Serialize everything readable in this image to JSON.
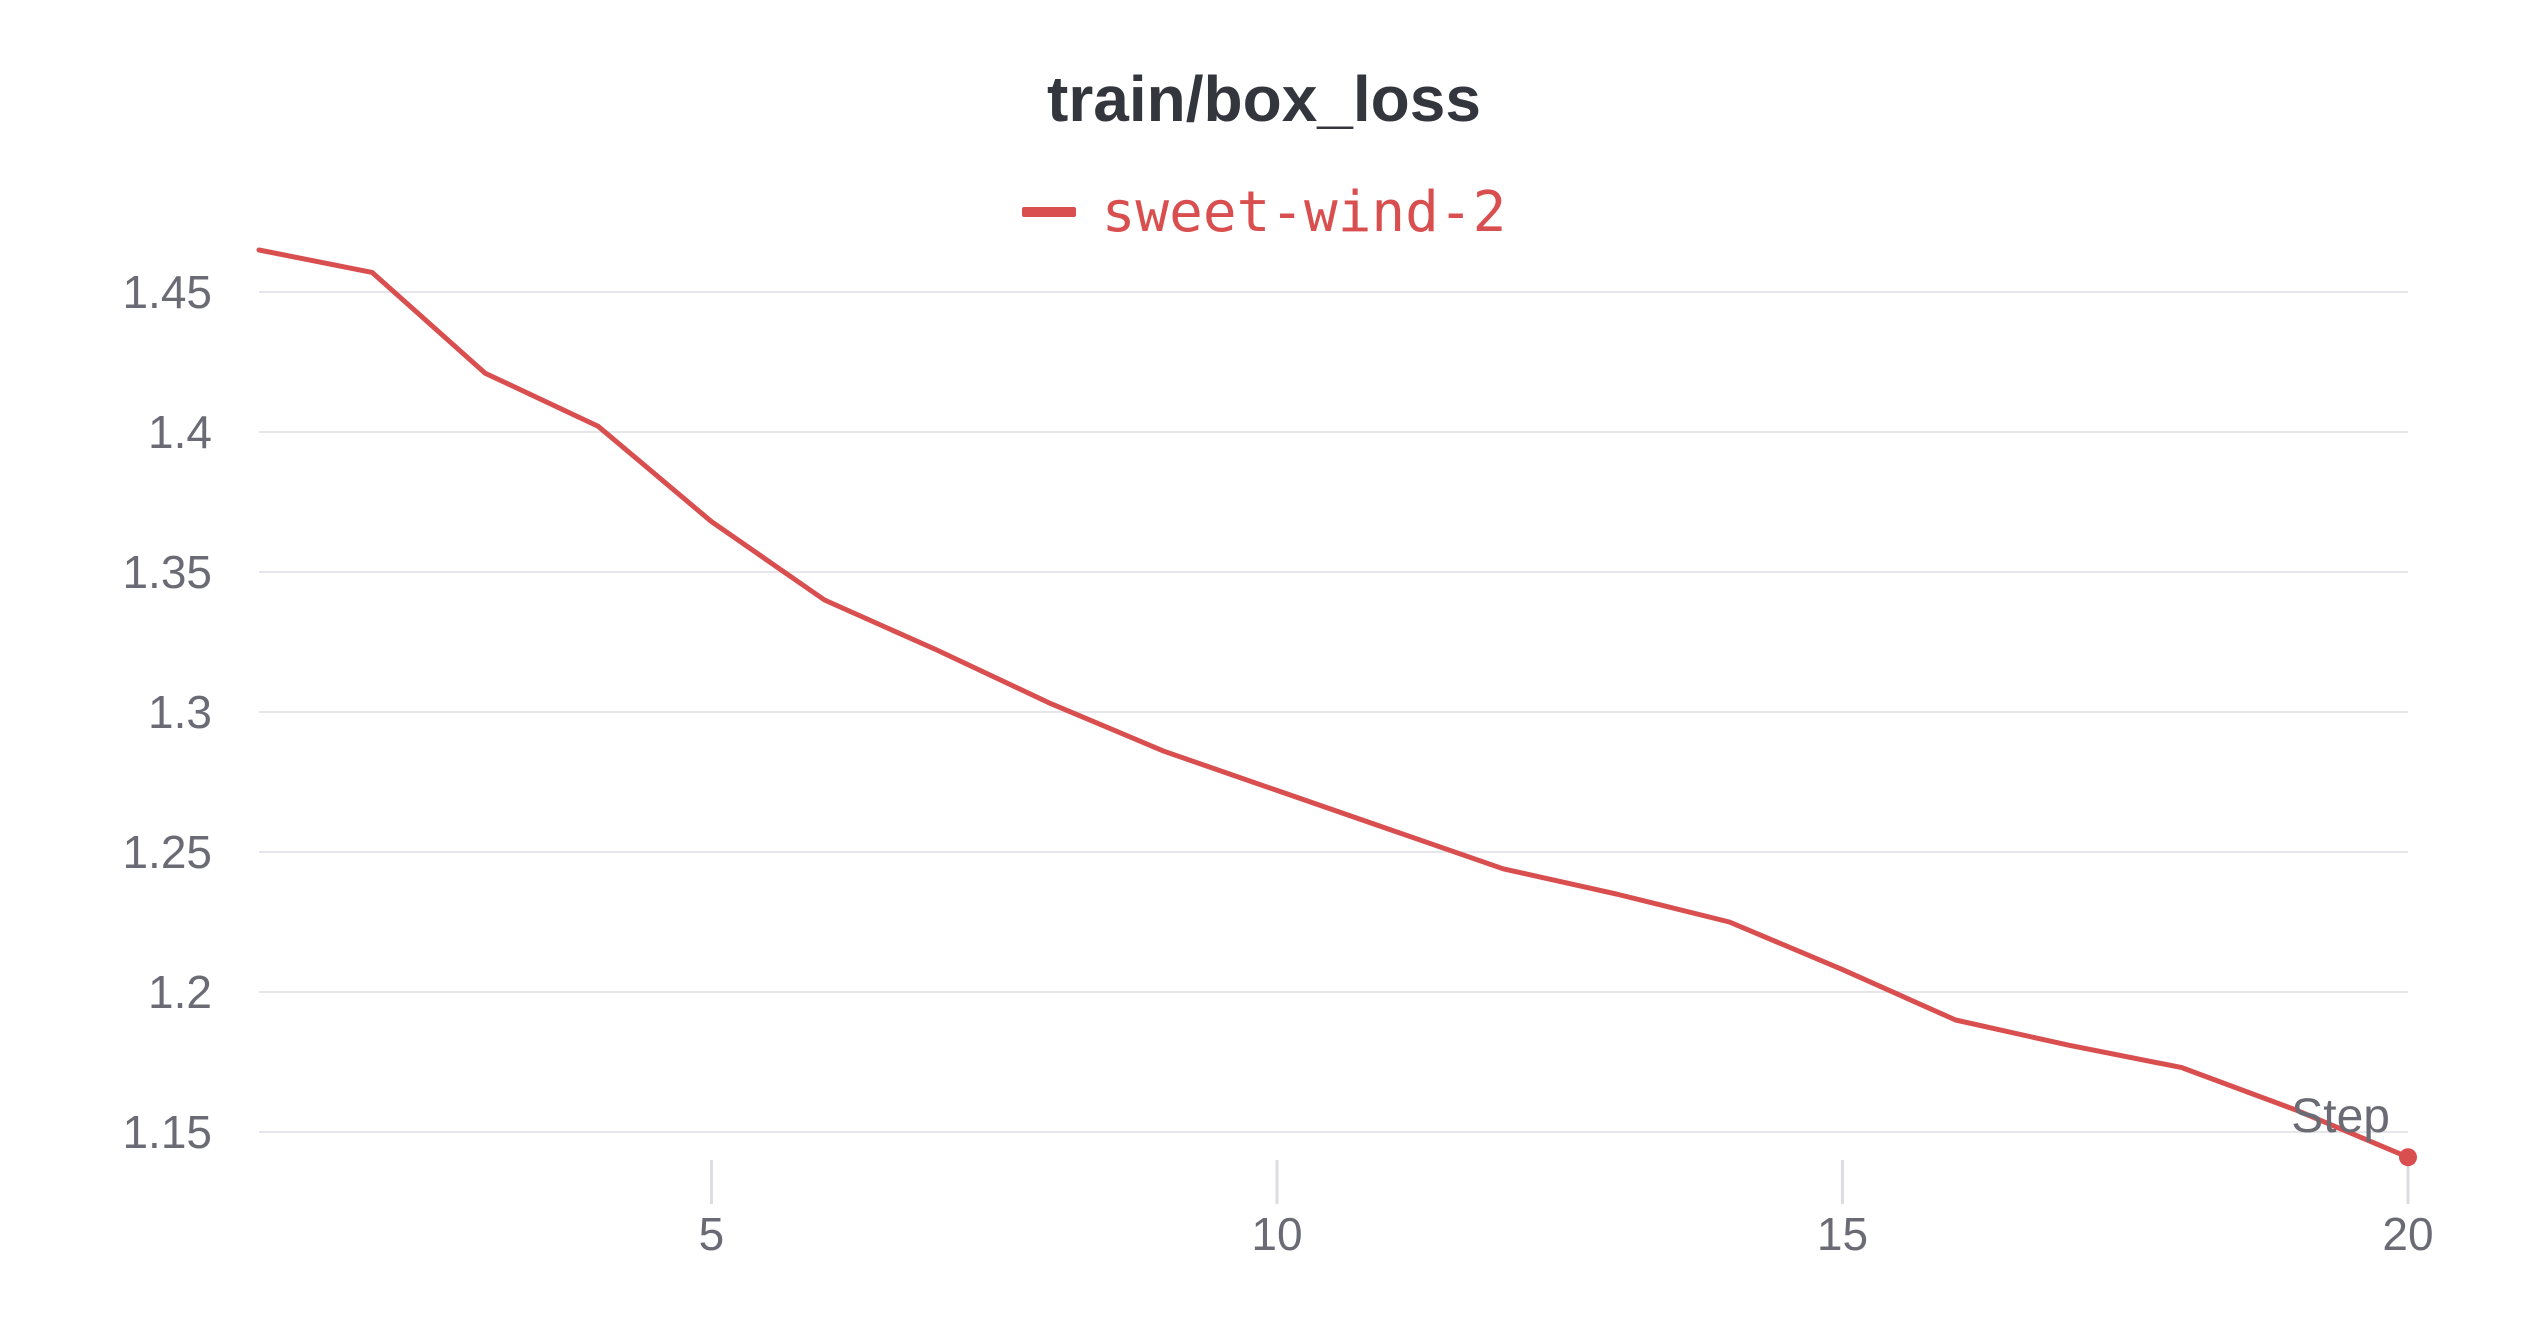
{
  "chart_data": {
    "type": "line",
    "title": "train/box_loss",
    "xlabel": "Step",
    "ylabel": "",
    "xlim": [
      1,
      20
    ],
    "ylim": [
      1.14,
      1.465
    ],
    "x_ticks": [
      "5",
      "10",
      "15",
      "20"
    ],
    "y_ticks": [
      "1.45",
      "1.4",
      "1.35",
      "1.3",
      "1.25",
      "1.2",
      "1.15"
    ],
    "grid": "horizontal",
    "legend_position": "top-center",
    "series": [
      {
        "name": "sweet-wind-2",
        "color": "#d94f4f",
        "x": [
          1,
          2,
          3,
          4,
          5,
          6,
          7,
          8,
          9,
          10,
          11,
          12,
          13,
          14,
          15,
          16,
          17,
          18,
          19,
          20
        ],
        "y": [
          1.465,
          1.457,
          1.421,
          1.402,
          1.368,
          1.34,
          1.322,
          1.303,
          1.286,
          1.272,
          1.258,
          1.244,
          1.235,
          1.225,
          1.208,
          1.19,
          1.181,
          1.173,
          1.158,
          1.141
        ]
      }
    ]
  }
}
